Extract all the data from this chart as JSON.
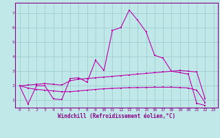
{
  "xlabel": "Windchill (Refroidissement éolien,°C)",
  "bg_color": "#c0e8e8",
  "grid_color": "#98c8c8",
  "line_color": "#bb00aa",
  "xlim": [
    -0.5,
    23.5
  ],
  "ylim": [
    0.5,
    7.7
  ],
  "xticks": [
    0,
    1,
    2,
    3,
    4,
    5,
    6,
    7,
    8,
    9,
    10,
    11,
    12,
    13,
    14,
    15,
    16,
    17,
    18,
    19,
    20,
    21,
    22,
    23
  ],
  "yticks": [
    1,
    2,
    3,
    4,
    5,
    6,
    7
  ],
  "line1_x": [
    0,
    1,
    2,
    3,
    4,
    5,
    6,
    7,
    8,
    9,
    10,
    11,
    12,
    13,
    14,
    15,
    16,
    17,
    18,
    19,
    20,
    21,
    22
  ],
  "line1_y": [
    2.0,
    0.75,
    2.0,
    2.0,
    1.1,
    1.05,
    2.5,
    2.55,
    2.25,
    3.75,
    3.05,
    5.8,
    6.0,
    7.2,
    6.5,
    5.7,
    4.1,
    3.9,
    3.0,
    2.9,
    2.8,
    0.8,
    0.65
  ],
  "line2_x": [
    0,
    1,
    2,
    3,
    4,
    5,
    6,
    7,
    8,
    9,
    10,
    11,
    12,
    13,
    14,
    15,
    16,
    17,
    18,
    19,
    20,
    21,
    22
  ],
  "line2_y": [
    2.0,
    2.05,
    2.1,
    2.15,
    2.1,
    2.05,
    2.35,
    2.45,
    2.5,
    2.55,
    2.6,
    2.65,
    2.7,
    2.75,
    2.8,
    2.85,
    2.9,
    2.95,
    3.0,
    3.05,
    3.0,
    2.95,
    1.1
  ],
  "line3_x": [
    0,
    1,
    2,
    3,
    4,
    5,
    6,
    7,
    8,
    9,
    10,
    11,
    12,
    13,
    14,
    15,
    16,
    17,
    18,
    19,
    20,
    21,
    22
  ],
  "line3_y": [
    2.0,
    1.85,
    1.75,
    1.7,
    1.65,
    1.6,
    1.6,
    1.65,
    1.7,
    1.75,
    1.8,
    1.82,
    1.85,
    1.87,
    1.88,
    1.89,
    1.9,
    1.9,
    1.9,
    1.88,
    1.85,
    1.7,
    0.85
  ]
}
